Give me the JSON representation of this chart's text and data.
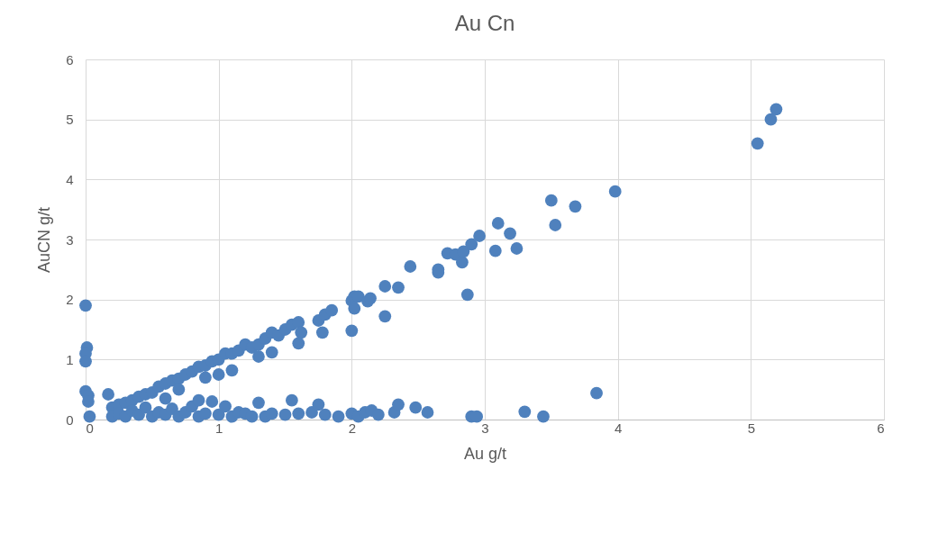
{
  "chart_data": {
    "type": "scatter",
    "title": "Au Cn",
    "xlabel": "Au g/t",
    "ylabel": "AuCN g/t",
    "xlim": [
      0,
      6
    ],
    "ylim": [
      0,
      6
    ],
    "xticks": [
      0,
      1,
      2,
      3,
      4,
      5,
      6
    ],
    "yticks": [
      0,
      1,
      2,
      3,
      4,
      5,
      6
    ],
    "grid": true,
    "marker": "circle",
    "series": [
      {
        "color": "#4f81bd",
        "x": [
          0,
          0.01,
          0,
          0,
          0,
          0.02,
          0.02,
          0.03,
          0.17,
          0.2,
          0.25,
          0.3,
          0.35,
          0.4,
          0.45,
          0.5,
          0.55,
          0.6,
          0.65,
          0.7,
          0.75,
          0.8,
          0.85,
          0.9,
          0.95,
          1.0,
          1.05,
          1.1,
          1.15,
          1.2,
          1.25,
          1.3,
          1.35,
          1.4,
          1.45,
          1.5,
          1.55,
          1.6,
          1.62,
          1.75,
          1.8,
          1.85,
          1.78,
          1.6,
          1.1,
          0.9,
          1.3,
          1.4,
          0.7,
          0.6,
          1.0,
          2.0,
          2.02,
          2.05,
          2.02,
          2.12,
          2.14,
          2.25,
          2.35,
          2.0,
          2.25,
          2.44,
          2.65,
          2.65,
          2.72,
          2.78,
          2.83,
          2.84,
          2.9,
          2.96,
          2.87,
          3.08,
          3.1,
          3.19,
          3.24,
          3.5,
          3.53,
          3.68,
          3.98,
          5.05,
          5.15,
          5.19,
          0.2,
          0.25,
          0.3,
          0.35,
          0.4,
          0.45,
          0.5,
          0.55,
          0.6,
          0.65,
          0.7,
          0.75,
          0.8,
          0.85,
          0.85,
          0.9,
          0.95,
          1.0,
          1.05,
          1.1,
          1.15,
          1.2,
          1.25,
          1.3,
          1.35,
          1.4,
          1.5,
          1.55,
          1.6,
          1.7,
          1.75,
          1.8,
          1.9,
          2.0,
          2.05,
          2.1,
          2.15,
          2.2,
          2.32,
          2.35,
          2.48,
          2.57,
          2.9,
          2.94,
          3.3,
          3.44,
          3.84
        ],
        "values": [
          1.9,
          1.2,
          1.1,
          0.97,
          0.47,
          0.4,
          0.3,
          0.05,
          0.42,
          0.2,
          0.25,
          0.28,
          0.32,
          0.38,
          0.42,
          0.45,
          0.55,
          0.6,
          0.65,
          0.68,
          0.75,
          0.8,
          0.88,
          0.9,
          0.97,
          1.0,
          1.1,
          1.1,
          1.15,
          1.25,
          1.2,
          1.25,
          1.35,
          1.45,
          1.4,
          1.5,
          1.58,
          1.62,
          1.45,
          1.65,
          1.75,
          1.82,
          1.45,
          1.27,
          0.82,
          0.7,
          1.05,
          1.12,
          0.5,
          0.35,
          0.75,
          1.98,
          2.05,
          2.05,
          1.85,
          1.97,
          2.02,
          2.22,
          2.2,
          1.48,
          1.72,
          2.55,
          2.45,
          2.5,
          2.77,
          2.75,
          2.62,
          2.8,
          2.92,
          3.06,
          2.08,
          2.81,
          3.27,
          3.1,
          2.85,
          3.65,
          3.24,
          3.55,
          3.8,
          4.6,
          5.0,
          5.17,
          0.05,
          0.1,
          0.05,
          0.15,
          0.08,
          0.2,
          0.05,
          0.12,
          0.08,
          0.18,
          0.05,
          0.12,
          0.22,
          0.32,
          0.05,
          0.1,
          0.3,
          0.08,
          0.22,
          0.05,
          0.12,
          0.1,
          0.05,
          0.28,
          0.05,
          0.1,
          0.08,
          0.32,
          0.1,
          0.12,
          0.25,
          0.08,
          0.05,
          0.1,
          0.05,
          0.12,
          0.15,
          0.08,
          0.12,
          0.25,
          0.2,
          0.12,
          0.05,
          0.05,
          0.13,
          0.05,
          0.44
        ]
      }
    ]
  }
}
